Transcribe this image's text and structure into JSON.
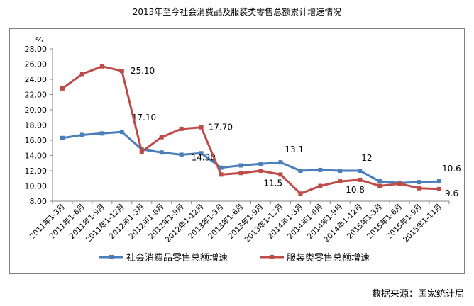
{
  "title": "2013年至今社会消费品及服装类零售总额累计增速情况",
  "source": "数据来源：国家统计局",
  "chart_data": {
    "type": "line",
    "title": "2013年至今社会消费品及服装类零售总额累计增速情况",
    "xlabel": "",
    "ylabel": "%",
    "ylim": [
      8,
      28
    ],
    "yticks": [
      "8.00",
      "10.00",
      "12.00",
      "14.00",
      "16.00",
      "18.00",
      "20.00",
      "22.00",
      "24.00",
      "26.00",
      "28.00"
    ],
    "grid": false,
    "legend_position": "bottom",
    "categories": [
      "2011年1-3月",
      "2011年1-6月",
      "2011年1-9月",
      "2011年1-12月",
      "2012年1-3月",
      "2012年1-6月",
      "2012年1-9月",
      "2012年1-12月",
      "2013年1-3月",
      "2013年1-6月",
      "2013年1-9月",
      "2013年1-12月",
      "2014年1-3月",
      "2014年1-6月",
      "2014年1-9月",
      "2014年1-12月",
      "2015年1-3月",
      "2015年1-6月",
      "2015年1-9月",
      "2015年1-11月"
    ],
    "series": [
      {
        "name": "社会消费品零售总额增速",
        "color": "#4a7ebb",
        "values": [
          16.3,
          16.7,
          16.9,
          17.1,
          14.8,
          14.4,
          14.1,
          14.3,
          12.4,
          12.7,
          12.9,
          13.1,
          12.0,
          12.1,
          12.0,
          12.0,
          10.6,
          10.4,
          10.5,
          10.6
        ],
        "labels": [
          {
            "index": 3,
            "text": "17.10"
          },
          {
            "index": 7,
            "text": "14.30"
          },
          {
            "index": 11,
            "text": "13.1"
          },
          {
            "index": 15,
            "text": "12"
          },
          {
            "index": 19,
            "text": "10.6"
          }
        ]
      },
      {
        "name": "服装类零售总额增速",
        "color": "#be4b48",
        "values": [
          22.8,
          24.7,
          25.7,
          25.1,
          14.5,
          16.4,
          17.5,
          17.7,
          11.5,
          11.7,
          12.0,
          11.5,
          9.0,
          10.0,
          10.6,
          10.8,
          10.0,
          10.3,
          9.7,
          9.6
        ],
        "labels": [
          {
            "index": 3,
            "text": "25.10"
          },
          {
            "index": 7,
            "text": "17.70"
          },
          {
            "index": 11,
            "text": "11.5"
          },
          {
            "index": 15,
            "text": "10.8"
          },
          {
            "index": 19,
            "text": "9.6"
          }
        ]
      }
    ],
    "legend": [
      "社会消费品零售总额增速",
      "服装类零售总额增速"
    ]
  }
}
